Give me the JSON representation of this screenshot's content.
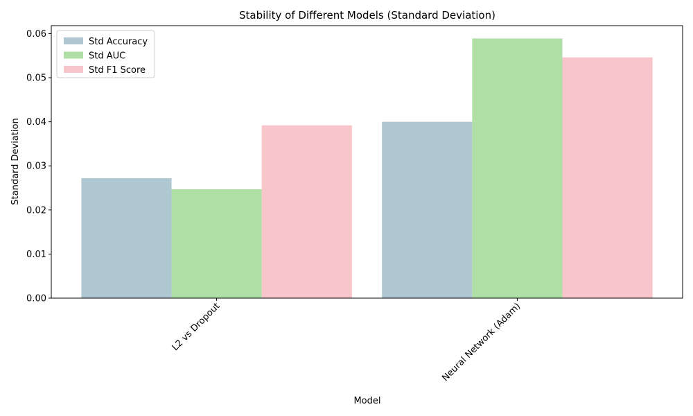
{
  "chart_data": {
    "type": "bar",
    "title": "Stability of Different Models (Standard Deviation)",
    "xlabel": "Model",
    "ylabel": "Standard Deviation",
    "categories": [
      "L2 vs Dropout",
      "Neural Network (Adam)"
    ],
    "series": [
      {
        "name": "Std Accuracy",
        "color": "#aec7d0",
        "values": [
          0.0272,
          0.04
        ]
      },
      {
        "name": "Std AUC",
        "color": "#b0dfa6",
        "values": [
          0.0247,
          0.0589
        ]
      },
      {
        "name": "Std F1 Score",
        "color": "#f8c5ca",
        "values": [
          0.0392,
          0.0546
        ]
      }
    ],
    "ylim": [
      0,
      0.0618
    ],
    "yticks": [
      "0.00",
      "0.01",
      "0.02",
      "0.03",
      "0.04",
      "0.05",
      "0.06"
    ],
    "ytick_values": [
      0,
      0.01,
      0.02,
      0.03,
      0.04,
      0.05,
      0.06
    ],
    "xtick_rotation": 45,
    "grid": false,
    "legend_position": "top-left"
  }
}
